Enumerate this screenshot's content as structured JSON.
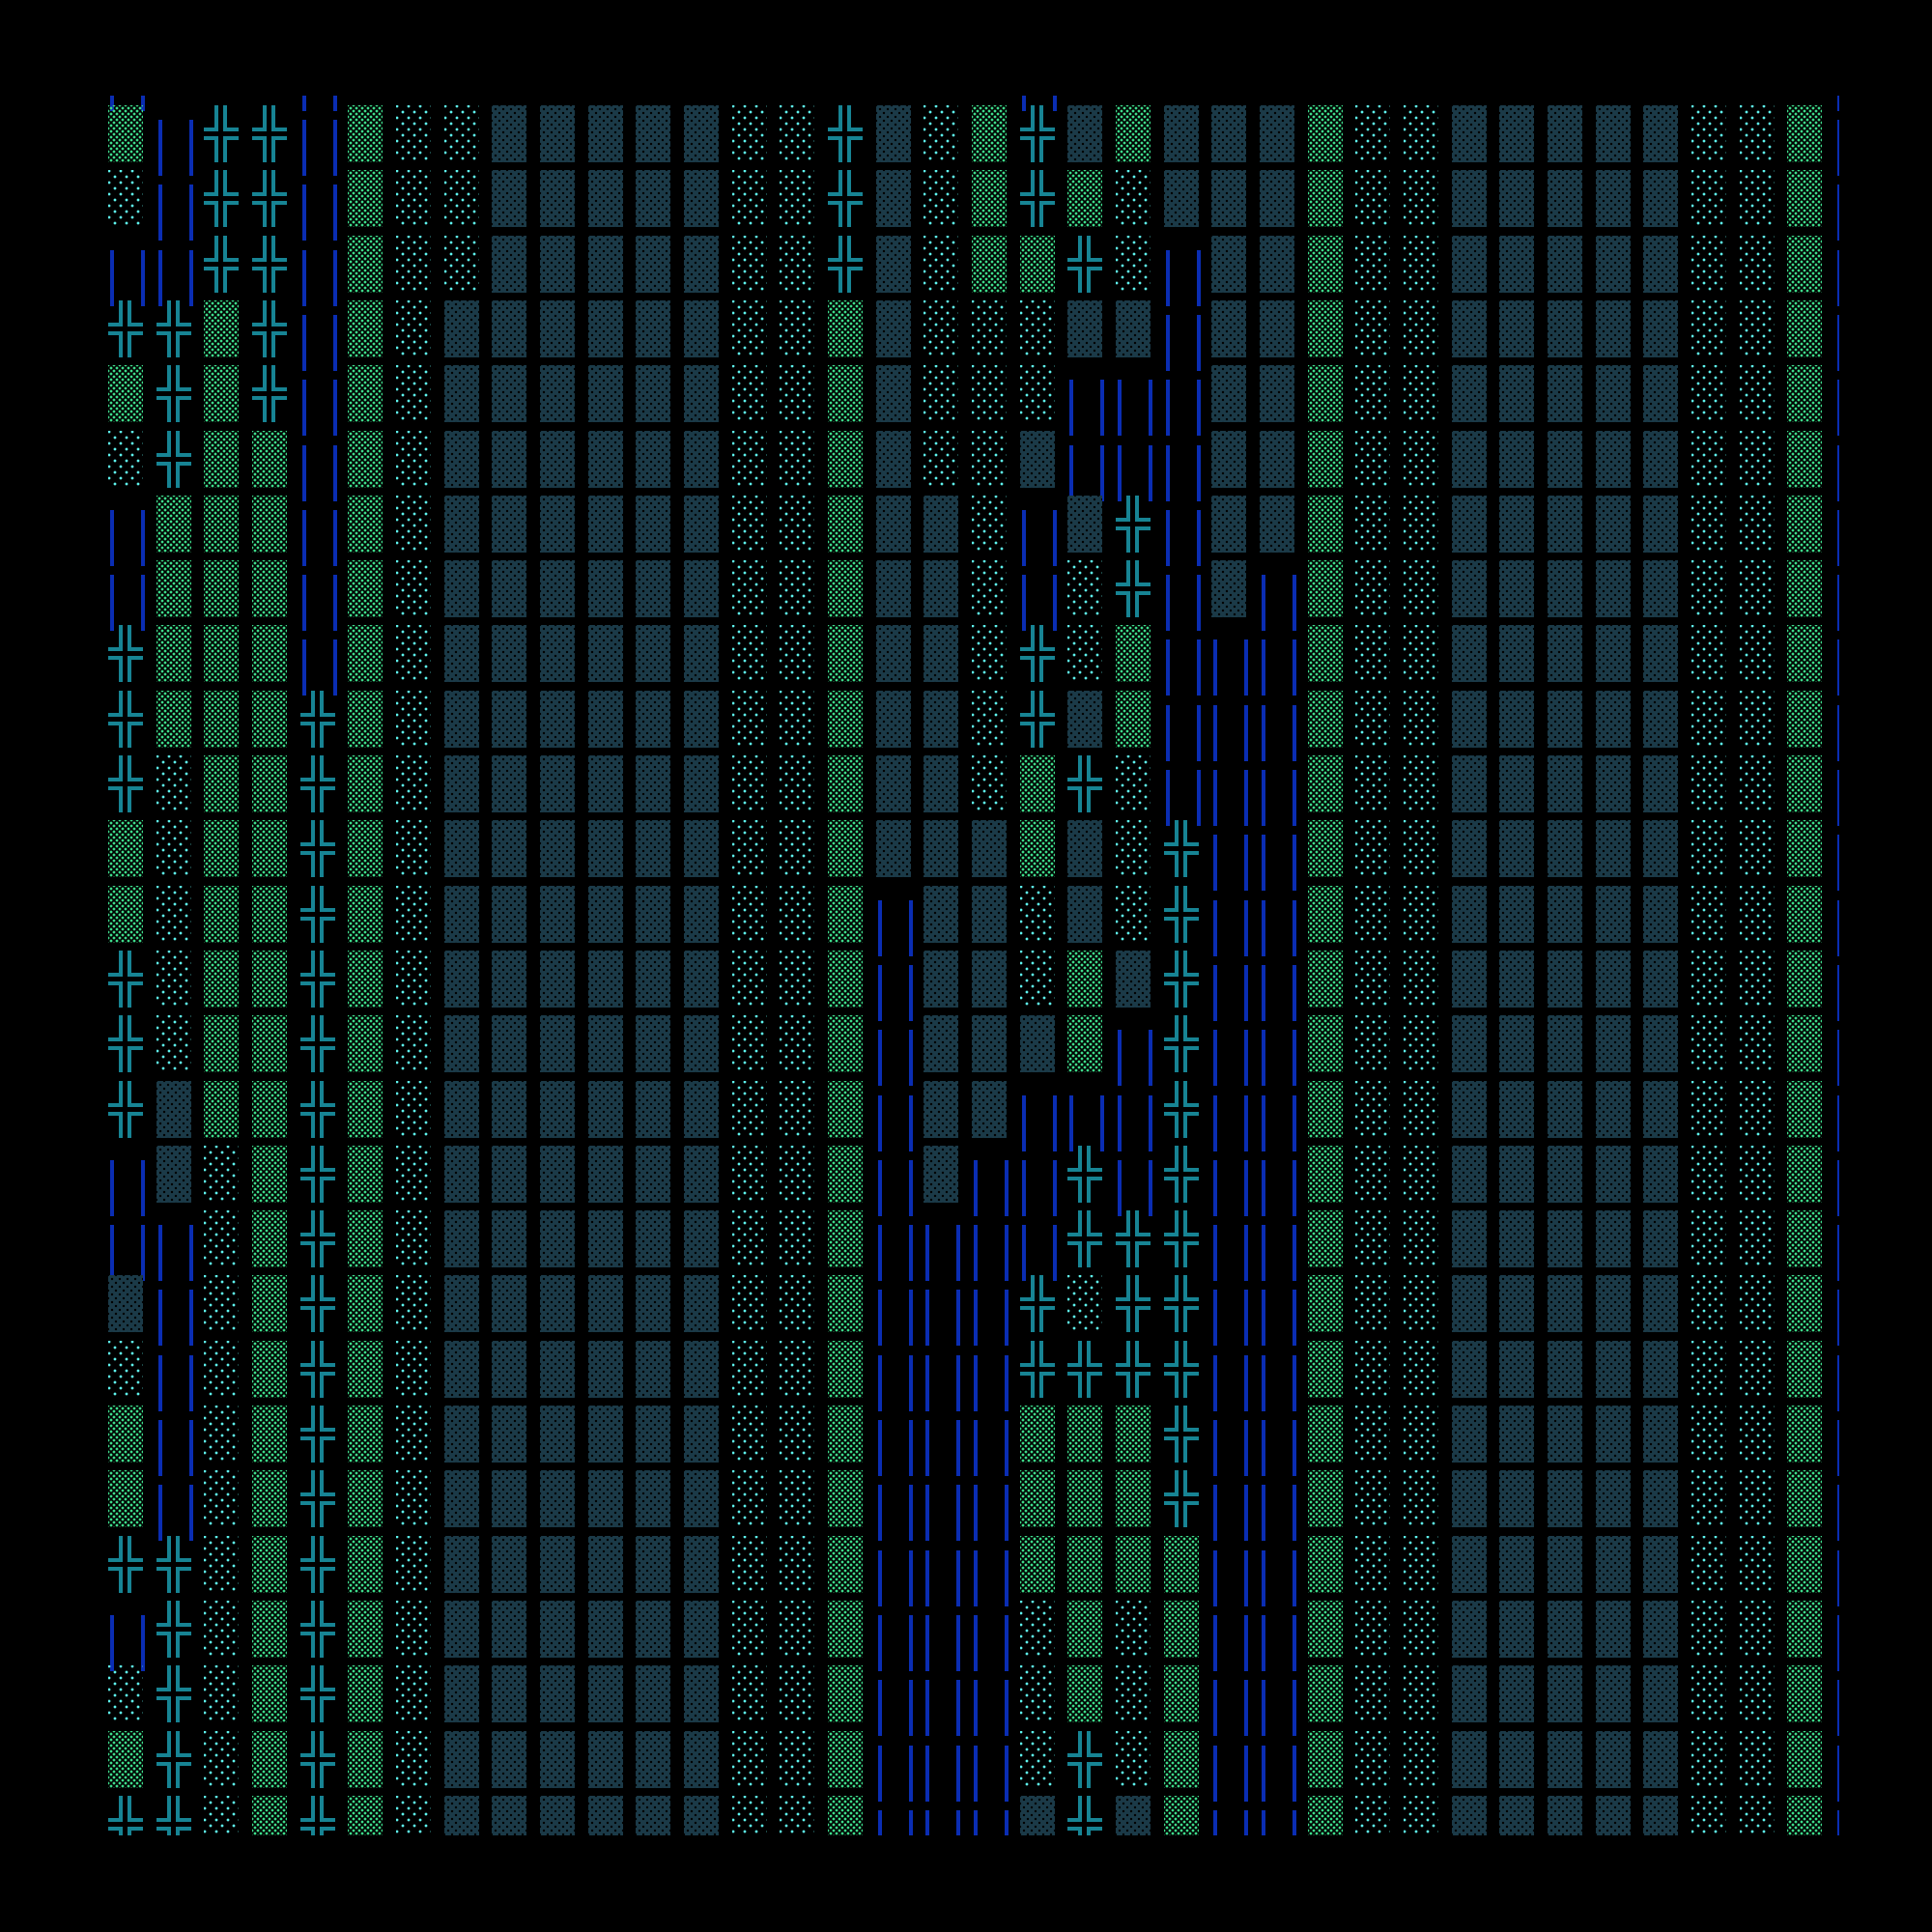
{
  "terminal": {
    "top_partial_row": "║   ║              ║                ║",
    "rows": [
      "▒║╬╬║▒░░▓▓▓▓▓░░╬▓░▒╬▓▒▓▓▓▒░░▓▓▓▓▓░░▒║",
      "░║╬╬║▒░░▓▓▓▓▓░░╬▓░▒╬▒░▓▓▓▒░░▓▓▓▓▓░░▒║",
      "║║╬╬║▒░░▓▓▓▓▓░░╬▓░▒▒╬░║▓▓▒░░▓▓▓▓▓░░▒║",
      "╬╬▒╬║▒░▓▓▓▓▓▓░░▒▓░░░▓▓║▓▓▒░░▓▓▓▓▓░░▒║",
      "▒╬▒╬║▒░▓▓▓▓▓▓░░▒▓░░░║║║▓▓▒░░▓▓▓▓▓░░▒║",
      "░╬▒▒║▒░▓▓▓▓▓▓░░▒▓░░▓║║║▓▓▒░░▓▓▓▓▓░░▒║",
      "║▒▒▒║▒░▓▓▓▓▓▓░░▒▓▓░║▓╬║▓▓▒░░▓▓▓▓▓░░▒║",
      "║▒▒▒║▒░▓▓▓▓▓▓░░▒▓▓░║░╬║▓║▒░░▓▓▓▓▓░░▒║",
      "╬▒▒▒║▒░▓▓▓▓▓▓░░▒▓▓░╬░▒║║║▒░░▓▓▓▓▓░░▒║",
      "╬▒▒▒╬▒░▓▓▓▓▓▓░░▒▓▓░╬▓▒║║║▒░░▓▓▓▓▓░░▒║",
      "╬░▒▒╬▒░▓▓▓▓▓▓░░▒▓▓░▒╬░║║║▒░░▓▓▓▓▓░░▒║",
      "▒░▒▒╬▒░▓▓▓▓▓▓░░▒▓▓▓▒▓░╬║║▒░░▓▓▓▓▓░░▒║",
      "▒░▒▒╬▒░▓▓▓▓▓▓░░▒║▓▓░▓░╬║║▒░░▓▓▓▓▓░░▒║",
      "╬░▒▒╬▒░▓▓▓▓▓▓░░▒║▓▓░▒▓╬║║▒░░▓▓▓▓▓░░▒║",
      "╬░▒▒╬▒░▓▓▓▓▓▓░░▒║▓▓▓▒║╬║║▒░░▓▓▓▓▓░░▒║",
      "╬▓▒▒╬▒░▓▓▓▓▓▓░░▒║▓▓║║║╬║║▒░░▓▓▓▓▓░░▒║",
      "║▓░▒╬▒░▓▓▓▓▓▓░░▒║▓║║╬║╬║║▒░░▓▓▓▓▓░░▒║",
      "║║░▒╬▒░▓▓▓▓▓▓░░▒║║║║╬╬╬║║▒░░▓▓▓▓▓░░▒║",
      "▓║░▒╬▒░▓▓▓▓▓▓░░▒║║║╬░╬╬║║▒░░▓▓▓▓▓░░▒║",
      "░║░▒╬▒░▓▓▓▓▓▓░░▒║║║╬╬╬╬║║▒░░▓▓▓▓▓░░▒║",
      "▒║░▒╬▒░▓▓▓▓▓▓░░▒║║║▒▒▒╬║║▒░░▓▓▓▓▓░░▒║",
      "▒║░▒╬▒░▓▓▓▓▓▓░░▒║║║▒▒▒╬║║▒░░▓▓▓▓▓░░▒║",
      "╬╬░▒╬▒░▓▓▓▓▓▓░░▒║║║▒▒▒▒║║▒░░▓▓▓▓▓░░▒║",
      "║╬░▒╬▒░▓▓▓▓▓▓░░▒║║║░▒░▒║║▒░░▓▓▓▓▓░░▒║",
      "░╬░▒╬▒░▓▓▓▓▓▓░░▒║║║░▒░▒║║▒░░▓▓▓▓▓░░▒║",
      "▒╬░▒╬▒░▓▓▓▓▓▓░░▒║║║░╬░▒║║▒░░▓▓▓▓▓░░▒║",
      "╬╬░▒╬▒░▓▓▓▓▓▓░░▒║║║▓╬▓▒║║▒░░▓▓▓▓▓░░▒║"
    ]
  },
  "glyphs": {
    "▒": {
      "icon": "medium-shade-icon",
      "color": "#3ddb8a"
    },
    "░": {
      "icon": "light-shade-icon",
      "color": "#5ef5ef"
    },
    "▓": {
      "icon": "dark-shade-icon",
      "color": "#1b3a48"
    },
    "╬": {
      "icon": "double-cross-icon",
      "color": "#178494"
    },
    "║": {
      "icon": "double-vertical-icon",
      "color": "#0a2db3"
    }
  },
  "background": "#000000"
}
